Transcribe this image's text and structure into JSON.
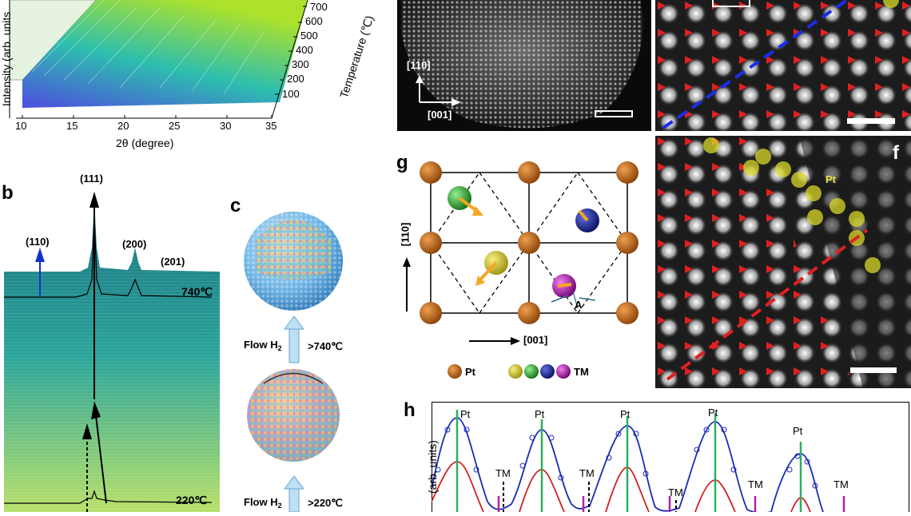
{
  "panel_a": {
    "xlabel": "2θ (degree)",
    "ylabel": "Intensity (arb. units",
    "zlabel": "Temperature (℃)",
    "x_ticks": [
      "10",
      "15",
      "20",
      "25",
      "30",
      "35"
    ],
    "temp_ticks": [
      "700",
      "600",
      "500",
      "400",
      "300",
      "200",
      "100"
    ]
  },
  "panel_b": {
    "letter": "b",
    "peaks": [
      "(111)",
      "(110)",
      "(200)",
      "(201)"
    ],
    "temp_high": "740℃",
    "temp_low": "220℃"
  },
  "panel_c": {
    "letter": "c",
    "flow_top": "Flow H",
    "flow_top_sub": "2",
    "flow_top_cond": ">740℃",
    "flow_bottom": "Flow H",
    "flow_bottom_sub": "2",
    "flow_bottom_cond": ">220℃"
  },
  "panel_d": {
    "dir_110": "[110]",
    "dir_001": "[001]"
  },
  "panel_f": {
    "letter": "f",
    "pt_label": "Pt"
  },
  "panel_g": {
    "letter": "g",
    "axis_110": "[110]",
    "axis_001": "[001]",
    "label_A": "A",
    "legend_pt": "Pt",
    "legend_tm": "TM",
    "colors": {
      "pt": "#b85f10",
      "tm_yellow": "#c8c020",
      "tm_green": "#2aa02a",
      "tm_blue": "#1a2a9a",
      "tm_magenta": "#b020b0",
      "arrow": "#f5a623"
    }
  },
  "panel_h": {
    "letter": "h",
    "ylabel": "(arb. units)",
    "pt_labels": [
      "Pt",
      "Pt",
      "Pt",
      "Pt",
      "Pt"
    ],
    "tm_labels": [
      "TM",
      "TM",
      "TM",
      "TM",
      "TM"
    ]
  }
}
